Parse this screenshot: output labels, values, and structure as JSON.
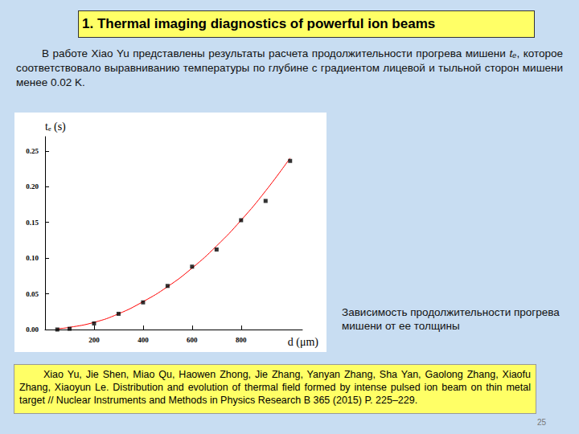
{
  "title": "1. Thermal imaging diagnostics of powerful ion beams",
  "text": [
    "В работе Xiao Yu представлены результаты расчета продолжительности прогрева мишени ",
    "tₑ",
    ", которое соответствовало выравниванию температуры по глубине с градиентом лицевой и тыльной сторон мишени менее 0.02 K."
  ],
  "caption": "Зависимость продолжительности прогрева мишени от ее толщины",
  "reference": "Xiao Yu, Jie Shen, Miao Qu, Haowen Zhong, Jie Zhang, Yanyan Zhang, Sha Yan, Gaolong Zhang, Xiaofu Zhang, Xiaoyun Le. Distribution and evolution of thermal field formed by intense pulsed ion beam on thin metal target // Nuclear Instruments and Methods in Physics Research B 365 (2015) P. 225–229.",
  "page": "25",
  "chart_data": {
    "type": "scatter",
    "x_label": "d (μm)",
    "y_label": "tₑ (s)",
    "x": [
      50,
      100,
      200,
      300,
      400,
      500,
      600,
      700,
      800,
      900,
      1000
    ],
    "series": [
      {
        "type": "scatter",
        "marker": "square",
        "color": "#000000",
        "values": [
          0.0,
          0.001,
          0.0085,
          0.022,
          0.038,
          0.061,
          0.088,
          0.112,
          0.153,
          0.18,
          0.236
        ]
      },
      {
        "type": "line",
        "line_style": "solid",
        "color": "#ff0000",
        "values": [
          0.001,
          0.003,
          0.01,
          0.022,
          0.039,
          0.06,
          0.086,
          0.117,
          0.153,
          0.194,
          0.24
        ]
      }
    ],
    "xlim": [
      0,
      1050
    ],
    "xticks": [
      200,
      400,
      600,
      800
    ],
    "ylim": [
      0,
      0.27
    ],
    "yticks": [
      {
        "value": 0,
        "label": "0.00"
      },
      {
        "value": 0.05,
        "label": "0.05"
      },
      {
        "value": 0.1,
        "label": "0.10"
      },
      {
        "value": 0.15,
        "label": "0.15"
      },
      {
        "value": 0.2,
        "label": "0.20"
      },
      {
        "value": 0.25,
        "label": "0.25"
      }
    ],
    "grid": false
  }
}
